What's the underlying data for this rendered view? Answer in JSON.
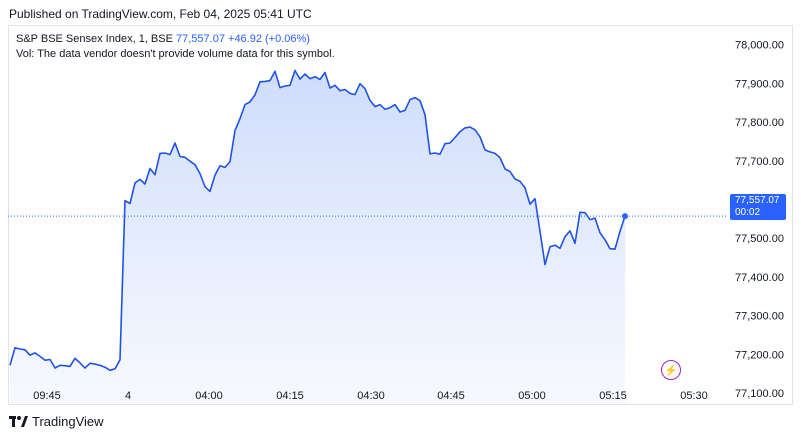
{
  "header": {
    "published": "Published on TradingView.com, Feb 04, 2025 05:41 UTC"
  },
  "legend": {
    "symbol": "S&P BSE Sensex Index, 1, BSE",
    "last_value": "77,557.07",
    "change": "+46.92 (+0.06%)",
    "volume_note": "Vol: The data vendor doesn't provide volume data for this symbol."
  },
  "price_label": {
    "value": "77,557.07",
    "countdown": "00:02"
  },
  "footer": {
    "brand": "TradingView"
  },
  "icons": {
    "logo": "tradingview-logo-icon",
    "bolt": "lightning-bolt-icon"
  },
  "colors": {
    "line": "#1e53e5",
    "area_top": "#c9d8fb",
    "area_bottom": "#f3f6fe",
    "price_label": "#2962ff",
    "bolt": "#9c27b0"
  },
  "chart_data": {
    "type": "area",
    "title": "S&P BSE Sensex Index, 1, BSE",
    "xlabel": "",
    "ylabel": "",
    "ylim": [
      77072,
      78048
    ],
    "y_ticks": [
      77100,
      77200,
      77300,
      77400,
      77500,
      77600,
      77700,
      77800,
      77900,
      78000
    ],
    "y_tick_labels": [
      "77,100.00",
      "77,200.00",
      "77,300.00",
      "77,400.00",
      "77,500.00",
      "77,600.00",
      "77,700.00",
      "77,800.00",
      "77,900.00",
      "78,000.00"
    ],
    "x_tick_labels": [
      "09:45",
      "4",
      "04:00",
      "04:15",
      "04:30",
      "04:45",
      "05:00",
      "05:15",
      "05:30"
    ],
    "grid": false,
    "last_price": 77557.07,
    "series": [
      {
        "values": [
          77172,
          77217,
          77214,
          77212,
          77198,
          77204,
          77195,
          77185,
          77187,
          77165,
          77172,
          77171,
          77169,
          77190,
          77178,
          77165,
          77177,
          77175,
          77172,
          77167,
          77159,
          77163,
          77186,
          77597,
          77590,
          77643,
          77652,
          77640,
          77680,
          77664,
          77719,
          77720,
          77716,
          77746,
          77711,
          77709,
          77699,
          77690,
          77667,
          77633,
          77621,
          77663,
          77687,
          77683,
          77698,
          77778,
          77809,
          77845,
          77852,
          77870,
          77904,
          77905,
          77907,
          77931,
          77889,
          77893,
          77895,
          77933,
          77911,
          77924,
          77912,
          77917,
          77910,
          77928,
          77888,
          77895,
          77881,
          77884,
          77874,
          77871,
          77899,
          77886,
          77856,
          77840,
          77845,
          77833,
          77837,
          77845,
          77826,
          77830,
          77858,
          77863,
          77855,
          77819,
          77718,
          77720,
          77717,
          77744,
          77746,
          77760,
          77775,
          77785,
          77787,
          77780,
          77762,
          77728,
          77723,
          77719,
          77708,
          77679,
          77672,
          77653,
          77647,
          77630,
          77588,
          77602,
          77518,
          77432,
          77478,
          77482,
          77474,
          77504,
          77519,
          77487,
          77567,
          77566,
          77548,
          77552,
          77514,
          77496,
          77473,
          77472,
          77518,
          77557
        ]
      }
    ]
  }
}
